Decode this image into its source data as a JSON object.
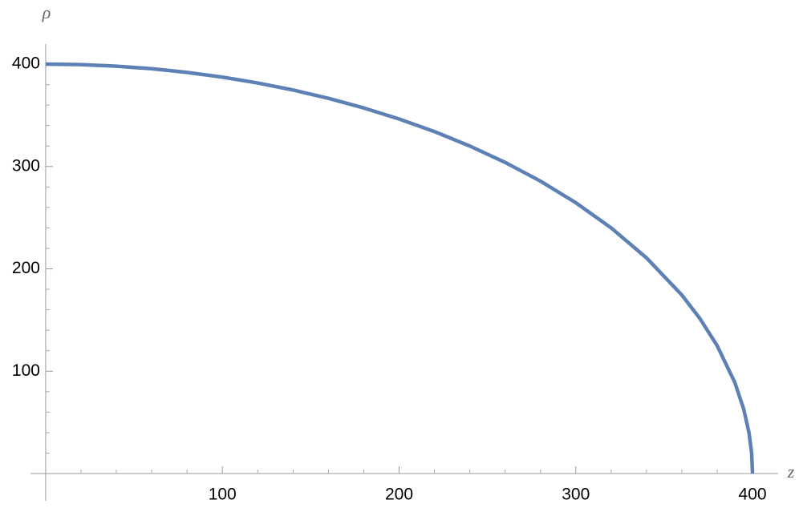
{
  "chart_data": {
    "type": "line",
    "x_label": "z",
    "y_label": "ρ",
    "x": [
      0,
      20,
      40,
      60,
      80,
      100,
      120,
      140,
      160,
      180,
      200,
      220,
      240,
      260,
      280,
      300,
      320,
      340,
      360,
      370,
      380,
      390,
      395,
      398,
      399.5,
      400
    ],
    "series": [
      {
        "color": "#5e81b5",
        "values": [
          400,
          399.5,
          398.0,
          395.5,
          391.9,
          387.3,
          381.6,
          374.7,
          366.6,
          357.2,
          346.4,
          334.1,
          320,
          304.0,
          285.7,
          264.6,
          240,
          210.7,
          174.4,
          152.0,
          124.9,
          88.9,
          63.0,
          39.9,
          20.0,
          0
        ]
      }
    ],
    "xlim": [
      -8.6,
      414.5
    ],
    "ylim": [
      -26.6,
      419.6
    ],
    "xticks": [
      100,
      200,
      300,
      400
    ],
    "yticks": [
      100,
      200,
      300,
      400
    ],
    "xminorticks": [
      20,
      40,
      60,
      80,
      120,
      140,
      160,
      180,
      220,
      240,
      260,
      280,
      320,
      340,
      360,
      380
    ],
    "yminorticks": [
      20,
      40,
      60,
      80,
      120,
      140,
      160,
      180,
      220,
      240,
      260,
      280,
      320,
      340,
      360,
      380
    ]
  }
}
